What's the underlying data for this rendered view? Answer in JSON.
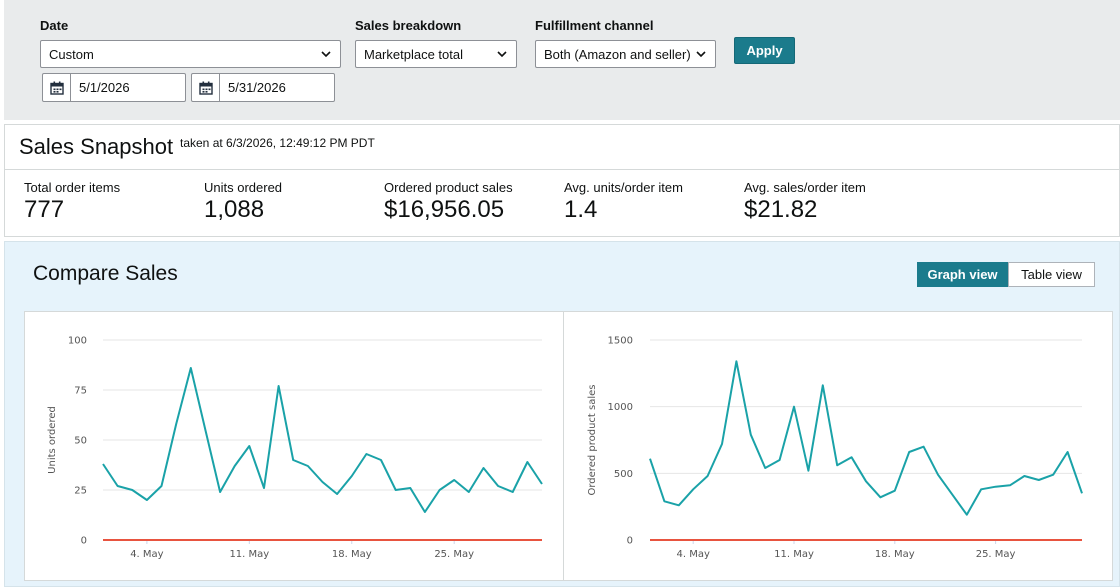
{
  "filters": {
    "date": {
      "label": "Date",
      "value": "Custom",
      "start": "5/1/2026",
      "end": "5/31/2026"
    },
    "breakdown": {
      "label": "Sales breakdown",
      "value": "Marketplace total"
    },
    "channel": {
      "label": "Fulfillment channel",
      "value": "Both (Amazon and seller)"
    },
    "apply_label": "Apply"
  },
  "snapshot": {
    "title": "Sales Snapshot",
    "taken": "taken at 6/3/2026, 12:49:12 PM PDT",
    "metrics": [
      {
        "label": "Total order items",
        "value": "777"
      },
      {
        "label": "Units ordered",
        "value": "1,088"
      },
      {
        "label": "Ordered product sales",
        "value": "$16,956.05"
      },
      {
        "label": "Avg. units/order item",
        "value": "1.4"
      },
      {
        "label": "Avg. sales/order item",
        "value": "$21.82"
      }
    ]
  },
  "compare": {
    "title": "Compare Sales",
    "graph_view_label": "Graph view",
    "table_view_label": "Table view"
  },
  "colors": {
    "line": "#1aa2a8",
    "zero_line": "#e8533f",
    "accent": "#1b7b8c"
  },
  "chart_data": [
    {
      "type": "line",
      "ylabel": "Units ordered",
      "ylim": [
        0,
        100
      ],
      "yticks": [
        0,
        25,
        50,
        75,
        100
      ],
      "x": [
        "2026-05-01",
        "2026-05-02",
        "2026-05-03",
        "2026-05-04",
        "2026-05-05",
        "2026-05-06",
        "2026-05-07",
        "2026-05-08",
        "2026-05-09",
        "2026-05-10",
        "2026-05-11",
        "2026-05-12",
        "2026-05-13",
        "2026-05-14",
        "2026-05-15",
        "2026-05-16",
        "2026-05-17",
        "2026-05-18",
        "2026-05-19",
        "2026-05-20",
        "2026-05-21",
        "2026-05-22",
        "2026-05-23",
        "2026-05-24",
        "2026-05-25",
        "2026-05-26",
        "2026-05-27",
        "2026-05-28",
        "2026-05-29",
        "2026-05-30",
        "2026-05-31"
      ],
      "xticks": [
        {
          "date": "2026-05-04",
          "label": "4. May"
        },
        {
          "date": "2026-05-11",
          "label": "11. May"
        },
        {
          "date": "2026-05-18",
          "label": "18. May"
        },
        {
          "date": "2026-05-25",
          "label": "25. May"
        }
      ],
      "series": [
        {
          "values": [
            38,
            27,
            25,
            20,
            27,
            58,
            86,
            55,
            24,
            37,
            47,
            26,
            77,
            40,
            37,
            29,
            23,
            32,
            43,
            40,
            25,
            26,
            14,
            25,
            30,
            24,
            36,
            27,
            24,
            39,
            28
          ]
        },
        {
          "values": [
            0,
            0,
            0,
            0,
            0,
            0,
            0,
            0,
            0,
            0,
            0,
            0,
            0,
            0,
            0,
            0,
            0,
            0,
            0,
            0,
            0,
            0,
            0,
            0,
            0,
            0,
            0,
            0,
            0,
            0,
            0
          ]
        }
      ],
      "grid": true
    },
    {
      "type": "line",
      "ylabel": "Ordered product sales",
      "ylim": [
        0,
        1500
      ],
      "yticks": [
        0,
        500,
        1000,
        1500
      ],
      "x": [
        "2026-05-01",
        "2026-05-02",
        "2026-05-03",
        "2026-05-04",
        "2026-05-05",
        "2026-05-06",
        "2026-05-07",
        "2026-05-08",
        "2026-05-09",
        "2026-05-10",
        "2026-05-11",
        "2026-05-12",
        "2026-05-13",
        "2026-05-14",
        "2026-05-15",
        "2026-05-16",
        "2026-05-17",
        "2026-05-18",
        "2026-05-19",
        "2026-05-20",
        "2026-05-21",
        "2026-05-22",
        "2026-05-23",
        "2026-05-24",
        "2026-05-25",
        "2026-05-26",
        "2026-05-27",
        "2026-05-28",
        "2026-05-29",
        "2026-05-30",
        "2026-05-31"
      ],
      "xticks": [
        {
          "date": "2026-05-04",
          "label": "4. May"
        },
        {
          "date": "2026-05-11",
          "label": "11. May"
        },
        {
          "date": "2026-05-18",
          "label": "18. May"
        },
        {
          "date": "2026-05-25",
          "label": "25. May"
        }
      ],
      "series": [
        {
          "values": [
            610,
            290,
            260,
            380,
            480,
            720,
            1340,
            790,
            540,
            600,
            1000,
            520,
            1160,
            560,
            620,
            440,
            320,
            370,
            660,
            700,
            490,
            340,
            190,
            380,
            400,
            410,
            480,
            450,
            490,
            660,
            350
          ]
        },
        {
          "values": [
            0,
            0,
            0,
            0,
            0,
            0,
            0,
            0,
            0,
            0,
            0,
            0,
            0,
            0,
            0,
            0,
            0,
            0,
            0,
            0,
            0,
            0,
            0,
            0,
            0,
            0,
            0,
            0,
            0,
            0,
            0
          ]
        }
      ],
      "grid": true
    }
  ]
}
